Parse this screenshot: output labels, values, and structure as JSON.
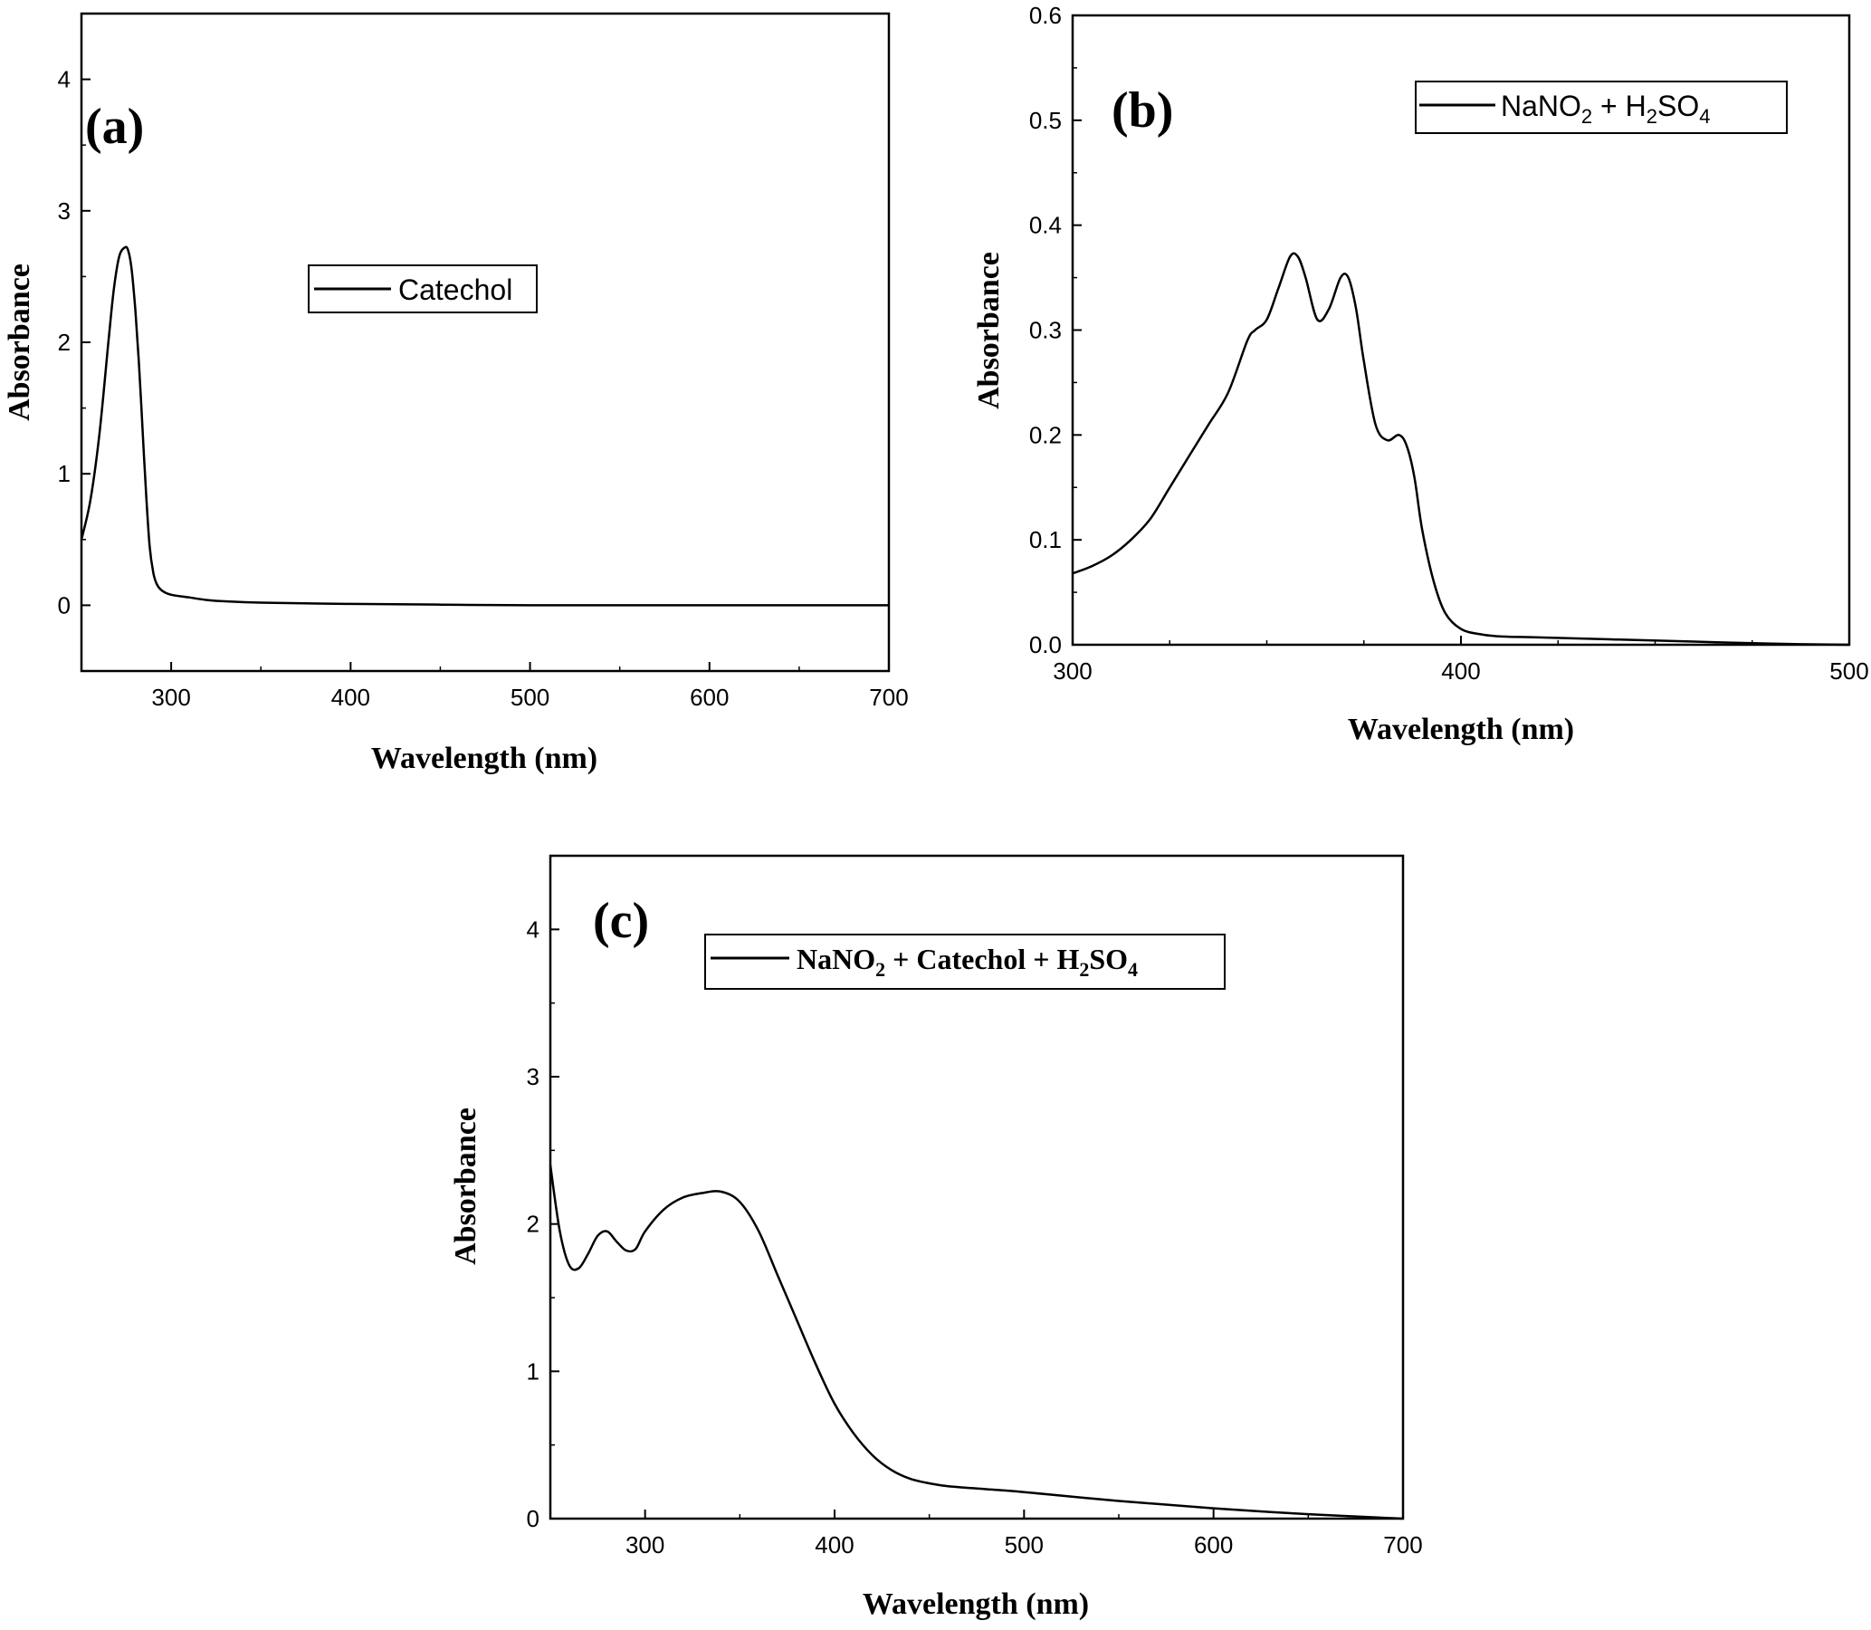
{
  "chart_data": [
    {
      "panel": "(a)",
      "type": "line",
      "xlabel": "Wavelength (nm)",
      "ylabel": "Absorbance",
      "xlim": [
        250,
        700
      ],
      "ylim": [
        -0.5,
        4.5
      ],
      "xticks": [
        300,
        400,
        500,
        600,
        700
      ],
      "yticks": [
        0,
        1,
        2,
        3,
        4
      ],
      "grid": false,
      "legend_position": "top-center",
      "series": [
        {
          "name": "Catechol",
          "color": "#000000",
          "x": [
            250,
            255,
            260,
            265,
            268,
            271,
            274,
            276,
            278,
            280,
            282,
            284,
            286,
            288,
            290,
            292,
            295,
            300,
            310,
            320,
            330,
            350,
            400,
            450,
            500,
            600,
            700
          ],
          "y": [
            0.5,
            0.8,
            1.3,
            2.0,
            2.4,
            2.65,
            2.72,
            2.7,
            2.55,
            2.25,
            1.85,
            1.35,
            0.85,
            0.45,
            0.25,
            0.16,
            0.11,
            0.08,
            0.06,
            0.04,
            0.03,
            0.02,
            0.01,
            0.005,
            0.0,
            0.0,
            0.0
          ]
        }
      ]
    },
    {
      "panel": "(b)",
      "type": "line",
      "xlabel": "Wavelength (nm)",
      "ylabel": "Absorbance",
      "xlim": [
        300,
        500
      ],
      "ylim": [
        0,
        0.6
      ],
      "xticks": [
        300,
        400,
        500
      ],
      "yticks": [
        0.0,
        0.1,
        0.2,
        0.3,
        0.4,
        0.5,
        0.6
      ],
      "grid": false,
      "legend_position": "top-right",
      "series": [
        {
          "name": "NaNO2 + H2SO4",
          "color": "#000000",
          "x": [
            300,
            305,
            310,
            315,
            320,
            325,
            330,
            335,
            340,
            345,
            347,
            350,
            353,
            356,
            358,
            360,
            363,
            366,
            369,
            371,
            373,
            375,
            378,
            381,
            384,
            386,
            388,
            390,
            393,
            396,
            400,
            405,
            410,
            420,
            440,
            460,
            480,
            500
          ],
          "y": [
            0.068,
            0.075,
            0.085,
            0.1,
            0.12,
            0.15,
            0.18,
            0.21,
            0.24,
            0.29,
            0.3,
            0.31,
            0.34,
            0.37,
            0.37,
            0.35,
            0.31,
            0.32,
            0.35,
            0.35,
            0.32,
            0.27,
            0.21,
            0.195,
            0.2,
            0.19,
            0.16,
            0.11,
            0.06,
            0.03,
            0.015,
            0.01,
            0.008,
            0.007,
            0.005,
            0.003,
            0.001,
            0.0
          ]
        }
      ]
    },
    {
      "panel": "(c)",
      "type": "line",
      "xlabel": "Wavelength (nm)",
      "ylabel": "Absorbance",
      "xlim": [
        250,
        700
      ],
      "ylim": [
        0,
        4.5
      ],
      "xticks": [
        300,
        400,
        500,
        600,
        700
      ],
      "yticks": [
        0,
        1,
        2,
        3,
        4
      ],
      "grid": false,
      "legend_position": "top-center",
      "series": [
        {
          "name": "NaNO2 + Catechol + H2SO4",
          "color": "#000000",
          "x": [
            250,
            255,
            260,
            265,
            270,
            275,
            280,
            285,
            290,
            295,
            300,
            310,
            320,
            330,
            340,
            350,
            360,
            370,
            380,
            390,
            400,
            410,
            420,
            430,
            440,
            450,
            460,
            480,
            500,
            550,
            600,
            650,
            700
          ],
          "y": [
            2.4,
            1.95,
            1.72,
            1.7,
            1.8,
            1.92,
            1.95,
            1.88,
            1.82,
            1.83,
            1.95,
            2.1,
            2.18,
            2.21,
            2.22,
            2.15,
            1.95,
            1.65,
            1.35,
            1.05,
            0.78,
            0.58,
            0.43,
            0.33,
            0.27,
            0.24,
            0.22,
            0.2,
            0.18,
            0.12,
            0.07,
            0.03,
            0.0
          ]
        }
      ]
    }
  ]
}
